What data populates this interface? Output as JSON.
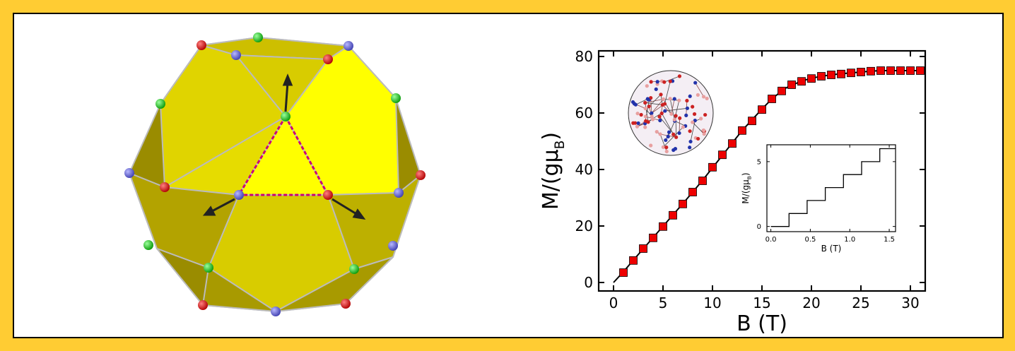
{
  "colors": {
    "border": "#ffcc33",
    "polyhedron_face": "#e6dc00",
    "polyhedron_face_dark": "#9a8c00",
    "polyhedron_edge": "#bbbbbb",
    "triangle_edge": "#c8007a",
    "atom_red": "#dd0000",
    "atom_blue": "#6666dd",
    "atom_green": "#11cc11",
    "arrow": "#222222",
    "marker": "#ee0000",
    "curve": "#000000"
  },
  "chart_data": [
    {
      "type": "scatter",
      "title": "",
      "xlabel": "B  (T)",
      "ylabel": "M/(gμB)",
      "xlim": [
        -1.5,
        31.5
      ],
      "ylim": [
        -3,
        82
      ],
      "xticks": [
        "0",
        "5",
        "10",
        "15",
        "20",
        "25",
        "30"
      ],
      "xtick_values": [
        0,
        5,
        10,
        15,
        20,
        25,
        30
      ],
      "yticks": [
        "0",
        "20",
        "40",
        "60",
        "80"
      ],
      "ytick_values": [
        0,
        20,
        40,
        60,
        80
      ],
      "grid": false,
      "series": [
        {
          "marker": "square",
          "x": [
            1,
            2,
            3,
            4,
            5,
            6,
            7,
            8,
            9,
            10,
            11,
            12,
            13,
            14,
            15,
            16,
            17,
            18,
            19,
            20,
            21,
            22,
            23,
            24,
            25,
            26,
            27,
            28,
            29,
            30,
            31
          ],
          "y": [
            3.5,
            7.8,
            12,
            15.8,
            19.8,
            23.8,
            27.8,
            32,
            36,
            40.8,
            45.2,
            49.2,
            53.8,
            57.2,
            61.2,
            65,
            67.8,
            70,
            71.2,
            72.2,
            73,
            73.5,
            73.8,
            74.2,
            74.5,
            74.8,
            75,
            75,
            75,
            75,
            75
          ]
        },
        {
          "marker": "line",
          "x": [
            0,
            1,
            2,
            3,
            4,
            5,
            6,
            7,
            8,
            9,
            10,
            11,
            12,
            13,
            14,
            15,
            16,
            17,
            17.5,
            18,
            19,
            20,
            21,
            22,
            23,
            24,
            25,
            26,
            27,
            28,
            29,
            30,
            31
          ],
          "y": [
            0,
            3.8,
            7.9,
            11.9,
            15.9,
            19.9,
            23.9,
            27.9,
            32,
            36.2,
            40.6,
            45,
            49.4,
            53.8,
            57.6,
            61.4,
            65,
            67.8,
            69,
            69.8,
            71.3,
            72.3,
            73,
            73.5,
            73.9,
            74.2,
            74.5,
            74.8,
            75,
            75,
            75,
            75,
            75
          ]
        }
      ]
    },
    {
      "type": "line",
      "title": "",
      "xlabel": "B  (T)",
      "ylabel": "M/(gμB)",
      "xlim": [
        -0.05,
        1.58
      ],
      "ylim": [
        -0.4,
        6.3
      ],
      "xticks": [
        "0.0",
        "0.5",
        "1.0",
        "1.5"
      ],
      "xtick_values": [
        0,
        0.5,
        1,
        1.5
      ],
      "yticks": [
        "0",
        "5"
      ],
      "ytick_values": [
        0,
        5
      ],
      "grid": false,
      "series": [
        {
          "x": [
            0,
            0.23,
            0.23,
            0.46,
            0.46,
            0.69,
            0.69,
            0.92,
            0.92,
            1.15,
            1.15,
            1.38,
            1.38,
            1.58
          ],
          "y": [
            0,
            0,
            1,
            1,
            2,
            2,
            3,
            3,
            4,
            4,
            5,
            5,
            6,
            6
          ]
        }
      ]
    }
  ]
}
